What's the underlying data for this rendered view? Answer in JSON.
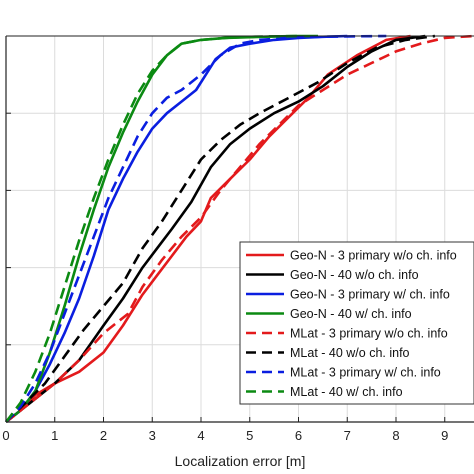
{
  "chart_data": {
    "type": "line",
    "title": "",
    "xlabel": "Localization error [m]",
    "ylabel": "",
    "xlim": [
      0,
      9.6
    ],
    "ylim": [
      0,
      1
    ],
    "xticks": [
      0,
      1,
      2,
      3,
      4,
      5,
      6,
      7,
      8,
      9
    ],
    "yticks": [
      0,
      0.2,
      0.4,
      0.6,
      0.8,
      1.0
    ],
    "grid": true,
    "legend_position": "lower-right",
    "series": [
      {
        "name": "Geo-N - 3 primary w/o ch. info",
        "color": "#e31a1c",
        "dash": "solid",
        "x": [
          0,
          0.3,
          0.6,
          1.0,
          1.5,
          2.0,
          2.4,
          2.8,
          3.1,
          3.4,
          3.7,
          4.0,
          4.2,
          4.6,
          5.0,
          5.4,
          5.8,
          6.2,
          6.6,
          7.2,
          7.8,
          8.3
        ],
        "y": [
          0,
          0.03,
          0.07,
          0.1,
          0.13,
          0.18,
          0.25,
          0.33,
          0.38,
          0.43,
          0.48,
          0.52,
          0.58,
          0.63,
          0.68,
          0.74,
          0.79,
          0.84,
          0.9,
          0.95,
          0.99,
          1.0
        ]
      },
      {
        "name": "Geo-N - 40 w/o ch. info",
        "color": "#000000",
        "dash": "solid",
        "x": [
          0,
          0.3,
          0.6,
          1.0,
          1.5,
          2.0,
          2.4,
          2.8,
          3.1,
          3.4,
          3.8,
          4.2,
          4.6,
          5.0,
          5.5,
          6.0,
          6.5,
          7.0,
          7.5,
          8.0,
          8.6
        ],
        "y": [
          0,
          0.03,
          0.06,
          0.1,
          0.16,
          0.25,
          0.32,
          0.4,
          0.45,
          0.5,
          0.57,
          0.66,
          0.72,
          0.76,
          0.8,
          0.83,
          0.87,
          0.92,
          0.96,
          0.99,
          1.0
        ]
      },
      {
        "name": "Geo-N - 3 primary w/ ch. info",
        "color": "#0a1ee0",
        "dash": "solid",
        "x": [
          0,
          0.3,
          0.6,
          0.9,
          1.2,
          1.5,
          1.8,
          2.1,
          2.4,
          2.7,
          3.0,
          3.3,
          3.6,
          3.9,
          4.1,
          4.3,
          4.6,
          5.0,
          5.5,
          6.0,
          6.5,
          7.0
        ],
        "y": [
          0,
          0.03,
          0.08,
          0.15,
          0.23,
          0.32,
          0.43,
          0.55,
          0.63,
          0.7,
          0.76,
          0.8,
          0.83,
          0.86,
          0.9,
          0.94,
          0.97,
          0.98,
          0.99,
          0.995,
          0.998,
          1.0
        ]
      },
      {
        "name": "Geo-N - 40 w/ ch. info",
        "color": "#0b8a12",
        "dash": "solid",
        "x": [
          0,
          0.3,
          0.6,
          0.9,
          1.2,
          1.5,
          1.8,
          2.1,
          2.4,
          2.7,
          3.0,
          3.3,
          3.6,
          4.0,
          4.5,
          5.0,
          5.5,
          6.0,
          6.4
        ],
        "y": [
          0,
          0.03,
          0.08,
          0.18,
          0.3,
          0.43,
          0.55,
          0.66,
          0.75,
          0.83,
          0.9,
          0.95,
          0.98,
          0.99,
          0.995,
          0.997,
          0.999,
          1.0,
          1.0
        ]
      },
      {
        "name": "MLat - 3 primary w/o ch. info",
        "color": "#e31a1c",
        "dash": "dashed",
        "x": [
          0,
          0.5,
          1.0,
          1.5,
          2.0,
          2.5,
          2.8,
          3.2,
          3.6,
          4.0,
          4.4,
          4.8,
          5.2,
          5.6,
          6.0,
          6.5,
          7.0,
          7.5,
          8.0,
          8.5,
          9.0,
          9.6
        ],
        "y": [
          0,
          0.05,
          0.1,
          0.16,
          0.23,
          0.28,
          0.35,
          0.42,
          0.48,
          0.53,
          0.6,
          0.66,
          0.72,
          0.77,
          0.82,
          0.86,
          0.9,
          0.93,
          0.96,
          0.98,
          0.995,
          1.0
        ]
      },
      {
        "name": "MLat - 40 w/o ch. info",
        "color": "#000000",
        "dash": "dashed",
        "x": [
          0,
          0.4,
          0.8,
          1.2,
          1.6,
          2.0,
          2.4,
          2.8,
          3.2,
          3.6,
          4.0,
          4.4,
          4.8,
          5.2,
          5.8,
          6.4,
          7.0,
          7.6,
          8.2,
          8.8
        ],
        "y": [
          0,
          0.05,
          0.1,
          0.17,
          0.24,
          0.3,
          0.36,
          0.45,
          0.52,
          0.6,
          0.68,
          0.73,
          0.77,
          0.8,
          0.84,
          0.88,
          0.93,
          0.97,
          0.99,
          1.0
        ]
      },
      {
        "name": "MLat - 3 primary w/ ch. info",
        "color": "#0a1ee0",
        "dash": "dashed",
        "x": [
          0,
          0.3,
          0.6,
          0.9,
          1.2,
          1.5,
          1.8,
          2.1,
          2.4,
          2.7,
          3.0,
          3.3,
          3.6,
          4.0,
          4.4,
          4.8,
          5.2,
          5.8,
          6.4,
          7.0,
          7.8
        ],
        "y": [
          0,
          0.04,
          0.1,
          0.18,
          0.28,
          0.38,
          0.48,
          0.58,
          0.66,
          0.74,
          0.8,
          0.84,
          0.86,
          0.9,
          0.95,
          0.98,
          0.99,
          0.995,
          0.998,
          0.999,
          1.0
        ]
      },
      {
        "name": "MLat - 40 w/ ch. info",
        "color": "#0b8a12",
        "dash": "dashed",
        "x": [
          0,
          0.3,
          0.6,
          0.9,
          1.2,
          1.5,
          1.8,
          2.1,
          2.4,
          2.7,
          3.0,
          3.3,
          3.6,
          4.0,
          4.5,
          5.0,
          5.5,
          6.0
        ],
        "y": [
          0,
          0.05,
          0.13,
          0.23,
          0.35,
          0.47,
          0.58,
          0.68,
          0.77,
          0.85,
          0.91,
          0.95,
          0.98,
          0.99,
          0.995,
          0.998,
          0.999,
          1.0
        ]
      }
    ]
  }
}
